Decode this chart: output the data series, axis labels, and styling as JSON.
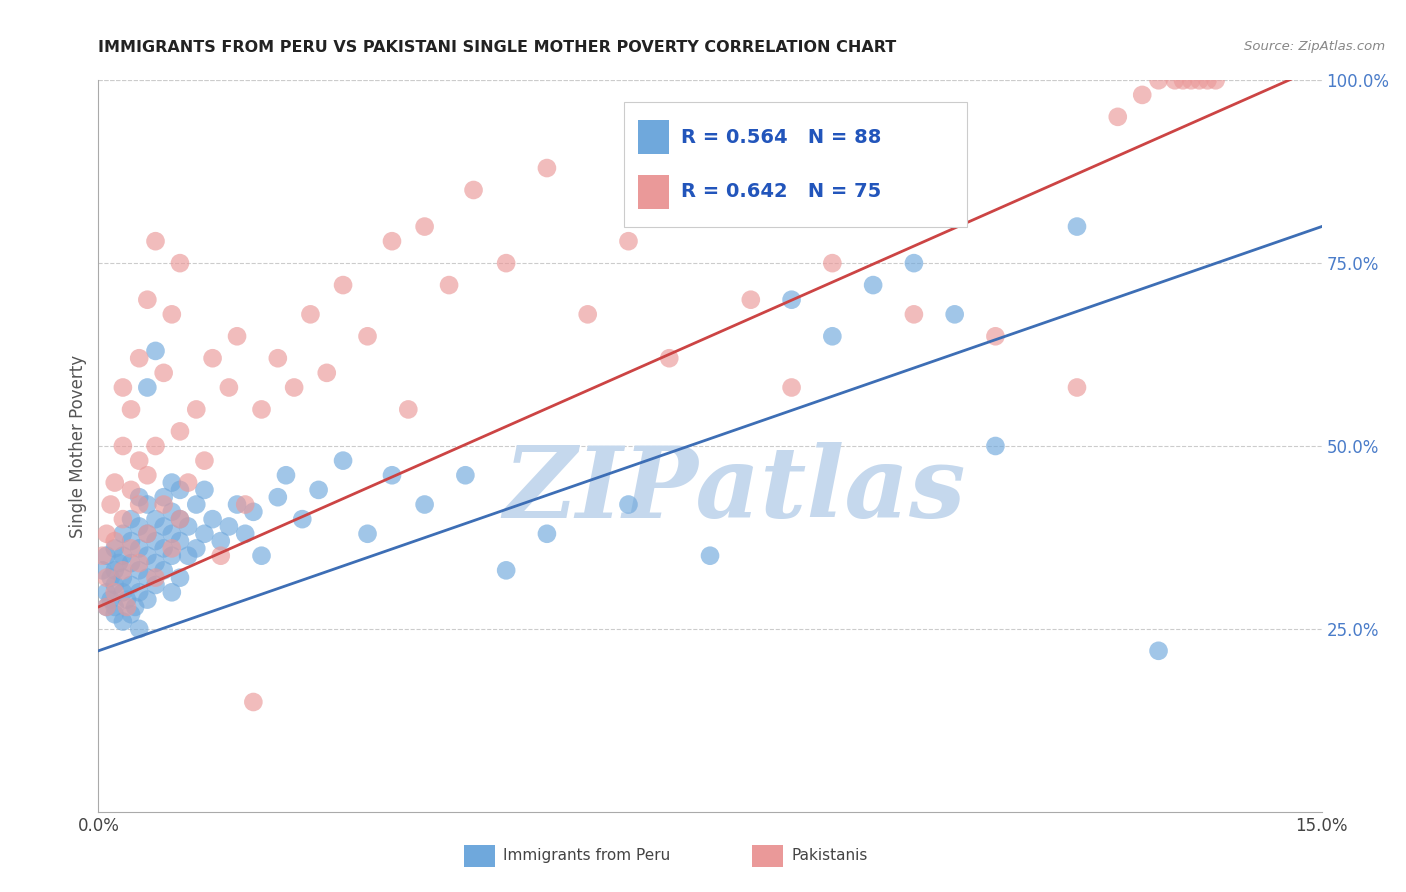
{
  "title": "IMMIGRANTS FROM PERU VS PAKISTANI SINGLE MOTHER POVERTY CORRELATION CHART",
  "source": "Source: ZipAtlas.com",
  "ylabel": "Single Mother Poverty",
  "xlim": [
    0,
    0.15
  ],
  "ylim": [
    0,
    1.0
  ],
  "x_ticks": [
    0.0,
    0.03,
    0.06,
    0.09,
    0.12,
    0.15
  ],
  "x_tick_labels": [
    "0.0%",
    "",
    "",
    "",
    "",
    "15.0%"
  ],
  "y_ticks_right": [
    0.25,
    0.5,
    0.75,
    1.0
  ],
  "y_tick_labels_right": [
    "25.0%",
    "50.0%",
    "75.0%",
    "100.0%"
  ],
  "blue_color": "#6fa8dc",
  "pink_color": "#ea9999",
  "blue_line_color": "#3d6eb5",
  "pink_line_color": "#cc4444",
  "right_axis_color": "#4a7cc9",
  "blue_label": "Immigrants from Peru",
  "pink_label": "Pakistanis",
  "blue_R": "0.564",
  "blue_N": "88",
  "pink_R": "0.642",
  "pink_N": "75",
  "legend_text_color": "#2255bb",
  "watermark": "ZIPatlas",
  "watermark_color": "#c5d8ed",
  "blue_line_x0": 0.0,
  "blue_line_y0": 0.22,
  "blue_line_x1": 0.15,
  "blue_line_y1": 0.8,
  "pink_line_x0": 0.0,
  "pink_line_y0": 0.28,
  "pink_line_x1": 0.15,
  "pink_line_y1": 1.02,
  "blue_scatter_x": [
    0.0005,
    0.001,
    0.001,
    0.001,
    0.0015,
    0.0015,
    0.002,
    0.002,
    0.002,
    0.002,
    0.002,
    0.0025,
    0.003,
    0.003,
    0.003,
    0.003,
    0.003,
    0.0035,
    0.004,
    0.004,
    0.004,
    0.004,
    0.004,
    0.0045,
    0.005,
    0.005,
    0.005,
    0.005,
    0.005,
    0.005,
    0.006,
    0.006,
    0.006,
    0.006,
    0.006,
    0.006,
    0.007,
    0.007,
    0.007,
    0.007,
    0.007,
    0.008,
    0.008,
    0.008,
    0.008,
    0.009,
    0.009,
    0.009,
    0.009,
    0.009,
    0.01,
    0.01,
    0.01,
    0.01,
    0.011,
    0.011,
    0.012,
    0.012,
    0.013,
    0.013,
    0.014,
    0.015,
    0.016,
    0.017,
    0.018,
    0.019,
    0.02,
    0.022,
    0.023,
    0.025,
    0.027,
    0.03,
    0.033,
    0.036,
    0.04,
    0.045,
    0.05,
    0.055,
    0.065,
    0.075,
    0.085,
    0.09,
    0.095,
    0.1,
    0.105,
    0.11,
    0.12,
    0.13
  ],
  "blue_scatter_y": [
    0.33,
    0.3,
    0.28,
    0.35,
    0.32,
    0.29,
    0.31,
    0.27,
    0.33,
    0.36,
    0.28,
    0.34,
    0.3,
    0.26,
    0.32,
    0.35,
    0.38,
    0.29,
    0.27,
    0.31,
    0.34,
    0.37,
    0.4,
    0.28,
    0.3,
    0.33,
    0.36,
    0.39,
    0.25,
    0.43,
    0.29,
    0.32,
    0.35,
    0.38,
    0.42,
    0.58,
    0.31,
    0.34,
    0.37,
    0.4,
    0.63,
    0.33,
    0.36,
    0.39,
    0.43,
    0.3,
    0.35,
    0.38,
    0.41,
    0.45,
    0.32,
    0.37,
    0.4,
    0.44,
    0.35,
    0.39,
    0.36,
    0.42,
    0.38,
    0.44,
    0.4,
    0.37,
    0.39,
    0.42,
    0.38,
    0.41,
    0.35,
    0.43,
    0.46,
    0.4,
    0.44,
    0.48,
    0.38,
    0.46,
    0.42,
    0.46,
    0.33,
    0.38,
    0.42,
    0.35,
    0.7,
    0.65,
    0.72,
    0.75,
    0.68,
    0.5,
    0.8,
    0.22
  ],
  "pink_scatter_x": [
    0.0005,
    0.001,
    0.001,
    0.001,
    0.0015,
    0.002,
    0.002,
    0.002,
    0.003,
    0.003,
    0.003,
    0.003,
    0.0035,
    0.004,
    0.004,
    0.004,
    0.005,
    0.005,
    0.005,
    0.005,
    0.006,
    0.006,
    0.006,
    0.007,
    0.007,
    0.007,
    0.008,
    0.008,
    0.009,
    0.009,
    0.01,
    0.01,
    0.01,
    0.011,
    0.012,
    0.013,
    0.014,
    0.015,
    0.016,
    0.017,
    0.018,
    0.019,
    0.02,
    0.022,
    0.024,
    0.026,
    0.028,
    0.03,
    0.033,
    0.036,
    0.038,
    0.04,
    0.043,
    0.046,
    0.05,
    0.055,
    0.06,
    0.065,
    0.07,
    0.075,
    0.08,
    0.085,
    0.09,
    0.1,
    0.11,
    0.12,
    0.125,
    0.128,
    0.13,
    0.132,
    0.133,
    0.134,
    0.135,
    0.136,
    0.137
  ],
  "pink_scatter_y": [
    0.35,
    0.32,
    0.38,
    0.28,
    0.42,
    0.3,
    0.37,
    0.45,
    0.33,
    0.4,
    0.5,
    0.58,
    0.28,
    0.36,
    0.44,
    0.55,
    0.34,
    0.42,
    0.48,
    0.62,
    0.38,
    0.46,
    0.7,
    0.32,
    0.5,
    0.78,
    0.42,
    0.6,
    0.36,
    0.68,
    0.4,
    0.52,
    0.75,
    0.45,
    0.55,
    0.48,
    0.62,
    0.35,
    0.58,
    0.65,
    0.42,
    0.15,
    0.55,
    0.62,
    0.58,
    0.68,
    0.6,
    0.72,
    0.65,
    0.78,
    0.55,
    0.8,
    0.72,
    0.85,
    0.75,
    0.88,
    0.68,
    0.78,
    0.62,
    0.82,
    0.7,
    0.58,
    0.75,
    0.68,
    0.65,
    0.58,
    0.95,
    0.98,
    1.0,
    1.0,
    1.0,
    1.0,
    1.0,
    1.0,
    1.0
  ],
  "background_color": "#ffffff",
  "grid_color": "#cccccc"
}
